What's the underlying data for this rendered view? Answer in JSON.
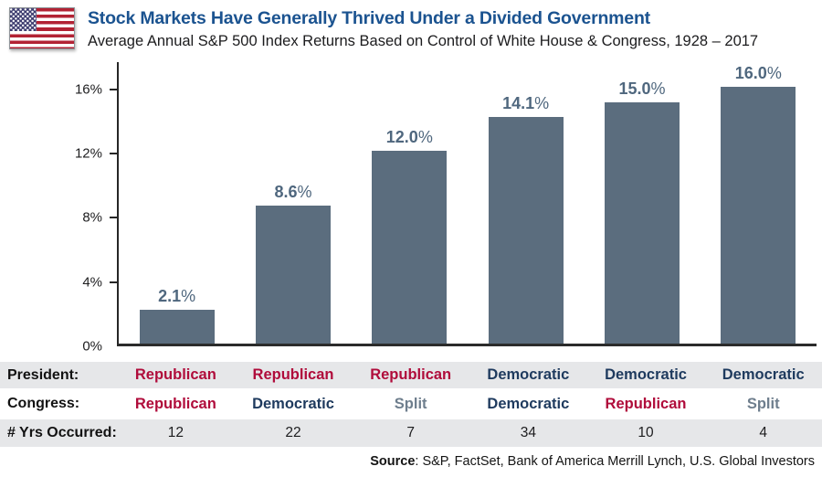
{
  "header": {
    "title": "Stock Markets Have Generally Thrived Under a Divided Government",
    "subtitle": "Average Annual S&P 500 Index Returns Based on Control of White House & Congress, 1928 – 2017"
  },
  "colors": {
    "title_blue": "#1b5390",
    "bar_slate": "#5b6d7e",
    "bar_label_slate": "#4f677e",
    "republican_red": "#b00c3b",
    "democratic_navy": "#1e3a5e",
    "split_slate": "#6e7e8d",
    "row_shade_gray": "#e6e7e9"
  },
  "chart_data": {
    "type": "bar",
    "title": "Stock Markets Have Generally Thrived Under a Divided Government",
    "subtitle": "Average Annual S&P 500 Index Returns Based on Control of White House & Congress, 1928 – 2017",
    "categories": [
      "President: Republican / Congress: Republican",
      "President: Republican / Congress: Democratic",
      "President: Republican / Congress: Split",
      "President: Democratic / Congress: Democratic",
      "President: Democratic / Congress: Republican",
      "President: Democratic / Congress: Split"
    ],
    "values": [
      2.1,
      8.6,
      12.0,
      14.1,
      15.0,
      16.0
    ],
    "bar_labels": [
      "2.1%",
      "8.6%",
      "12.0%",
      "14.1%",
      "15.0%",
      "16.0%"
    ],
    "years_occurred": [
      12,
      22,
      7,
      34,
      10,
      4
    ],
    "xlabel": "",
    "ylabel": "",
    "ylim": [
      0,
      17.7
    ],
    "yticks": [
      {
        "value": 0,
        "label": "0%"
      },
      {
        "value": 4,
        "label": "4%"
      },
      {
        "value": 8,
        "label": "8%"
      },
      {
        "value": 12,
        "label": "12%"
      },
      {
        "value": 16,
        "label": "16%"
      }
    ],
    "grid": false,
    "legend": false
  },
  "table": {
    "rows": [
      {
        "label": "President:",
        "shaded": true,
        "cells": [
          {
            "text": "Republican",
            "party": "republican"
          },
          {
            "text": "Republican",
            "party": "republican"
          },
          {
            "text": "Republican",
            "party": "republican"
          },
          {
            "text": "Democratic",
            "party": "democratic"
          },
          {
            "text": "Democratic",
            "party": "democratic"
          },
          {
            "text": "Democratic",
            "party": "democratic"
          }
        ]
      },
      {
        "label": "Congress:",
        "shaded": false,
        "cells": [
          {
            "text": "Republican",
            "party": "republican"
          },
          {
            "text": "Democratic",
            "party": "democratic"
          },
          {
            "text": "Split",
            "party": "split"
          },
          {
            "text": "Democratic",
            "party": "democratic"
          },
          {
            "text": "Republican",
            "party": "republican"
          },
          {
            "text": "Split",
            "party": "split"
          }
        ]
      },
      {
        "label": "# Yrs Occurred:",
        "shaded": true,
        "cells": [
          {
            "text": "12",
            "party": "plain"
          },
          {
            "text": "22",
            "party": "plain"
          },
          {
            "text": "7",
            "party": "plain"
          },
          {
            "text": "34",
            "party": "plain"
          },
          {
            "text": "10",
            "party": "plain"
          },
          {
            "text": "4",
            "party": "plain"
          }
        ]
      }
    ]
  },
  "source": {
    "label": "Source",
    "text": ": S&P, FactSet, Bank of America Merrill Lynch, U.S. Global Investors"
  }
}
